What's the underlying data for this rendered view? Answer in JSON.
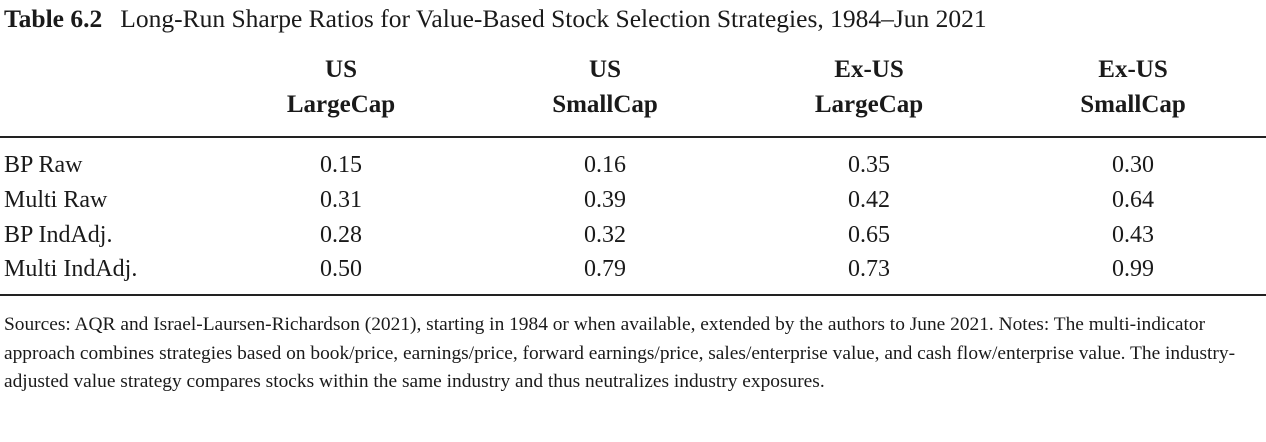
{
  "table": {
    "number": "Table 6.2",
    "title": "Long-Run Sharpe Ratios for Value-Based Stock Selection Strategies, 1984–Jun 2021",
    "columns": [
      {
        "line1": "US",
        "line2": "LargeCap"
      },
      {
        "line1": "US",
        "line2": "SmallCap"
      },
      {
        "line1": "Ex-US",
        "line2": "LargeCap"
      },
      {
        "line1": "Ex-US",
        "line2": "SmallCap"
      }
    ],
    "rows": [
      {
        "label": "BP Raw",
        "values": [
          "0.15",
          "0.16",
          "0.35",
          "0.30"
        ]
      },
      {
        "label": "Multi Raw",
        "values": [
          "0.31",
          "0.39",
          "0.42",
          "0.64"
        ]
      },
      {
        "label": "BP IndAdj.",
        "values": [
          "0.28",
          "0.32",
          "0.65",
          "0.43"
        ]
      },
      {
        "label": "Multi IndAdj.",
        "values": [
          "0.50",
          "0.79",
          "0.73",
          "0.99"
        ]
      }
    ]
  },
  "notes": "Sources: AQR and Israel-Laursen-Richardson (2021), starting in 1984 or when available, extended by the authors to June 2021. Notes: The multi-indicator approach combines strategies based on book/price, earnings/price, forward earnings/price, sales/enterprise value, and cash flow/enterprise value. The industry-adjusted value strategy compares stocks within the same industry and thus neutralizes industry exposures."
}
